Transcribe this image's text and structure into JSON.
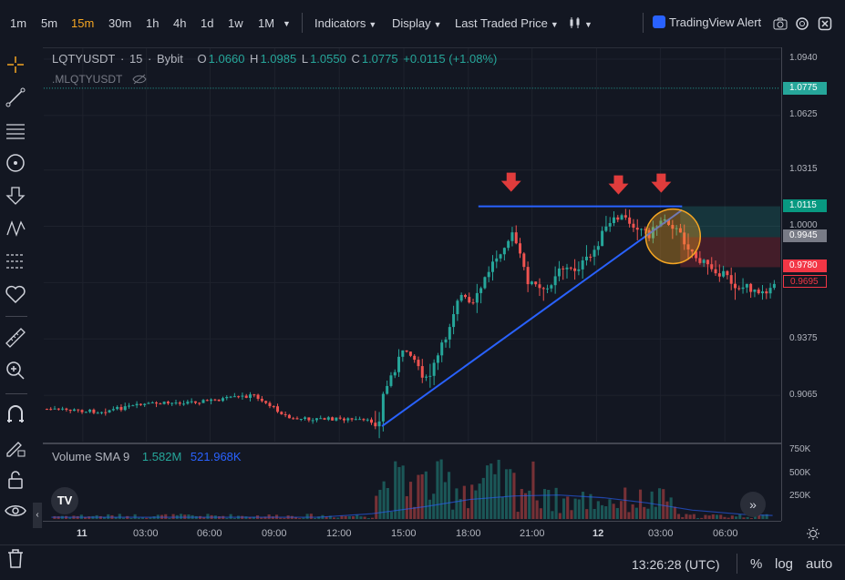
{
  "toolbar": {
    "timeframes": [
      "1m",
      "5m",
      "15m",
      "30m",
      "1h",
      "4h",
      "1d",
      "1w",
      "1M"
    ],
    "active_timeframe": "15m",
    "indicators_label": "Indicators",
    "display_label": "Display",
    "price_type_label": "Last Traded Price",
    "alert_label": "TradingView Alert"
  },
  "legend": {
    "symbol": "LQTYUSDT",
    "interval": "15",
    "exchange": "Bybit",
    "open_key": "O",
    "open": "1.0660",
    "high_key": "H",
    "high": "1.0985",
    "low_key": "L",
    "low": "1.0550",
    "close_key": "C",
    "close": "1.0775",
    "change": "+0.0115 (+1.08%)",
    "mark_symbol": ".MLQTYUSDT"
  },
  "price_axis": {
    "labels": [
      "1.0940",
      "1.0625",
      "1.0315",
      "1.0000",
      "0.9375",
      "0.9065"
    ],
    "badges": [
      {
        "value": "1.0775",
        "color": "#26a69a"
      },
      {
        "value": "1.0115",
        "color": "#089981"
      },
      {
        "value": "0.9945",
        "color": "#787b86"
      },
      {
        "value": "0.9780",
        "color": "#f23645"
      },
      {
        "value": "0.9695",
        "color": "#f23645"
      }
    ]
  },
  "volume": {
    "title": "Volume SMA 9",
    "value_1": "1.582M",
    "value_2": "521.968K",
    "axis_labels": [
      "750K",
      "500K",
      "250K"
    ]
  },
  "time_axis": {
    "labels": [
      {
        "text": "11",
        "bold": true
      },
      {
        "text": "03:00",
        "bold": false
      },
      {
        "text": "06:00",
        "bold": false
      },
      {
        "text": "09:00",
        "bold": false
      },
      {
        "text": "12:00",
        "bold": false
      },
      {
        "text": "15:00",
        "bold": false
      },
      {
        "text": "18:00",
        "bold": false
      },
      {
        "text": "21:00",
        "bold": false
      },
      {
        "text": "12",
        "bold": true
      },
      {
        "text": "03:00",
        "bold": false
      },
      {
        "text": "06:00",
        "bold": false
      }
    ]
  },
  "bottom": {
    "clock": "13:26:28 (UTC)",
    "percent": "%",
    "log": "log",
    "auto": "auto"
  },
  "colors": {
    "up": "#26a69a",
    "down": "#ef5350",
    "trendline": "#2962ff",
    "arrow": "#e03c3c",
    "circle": "#f5a623"
  }
}
